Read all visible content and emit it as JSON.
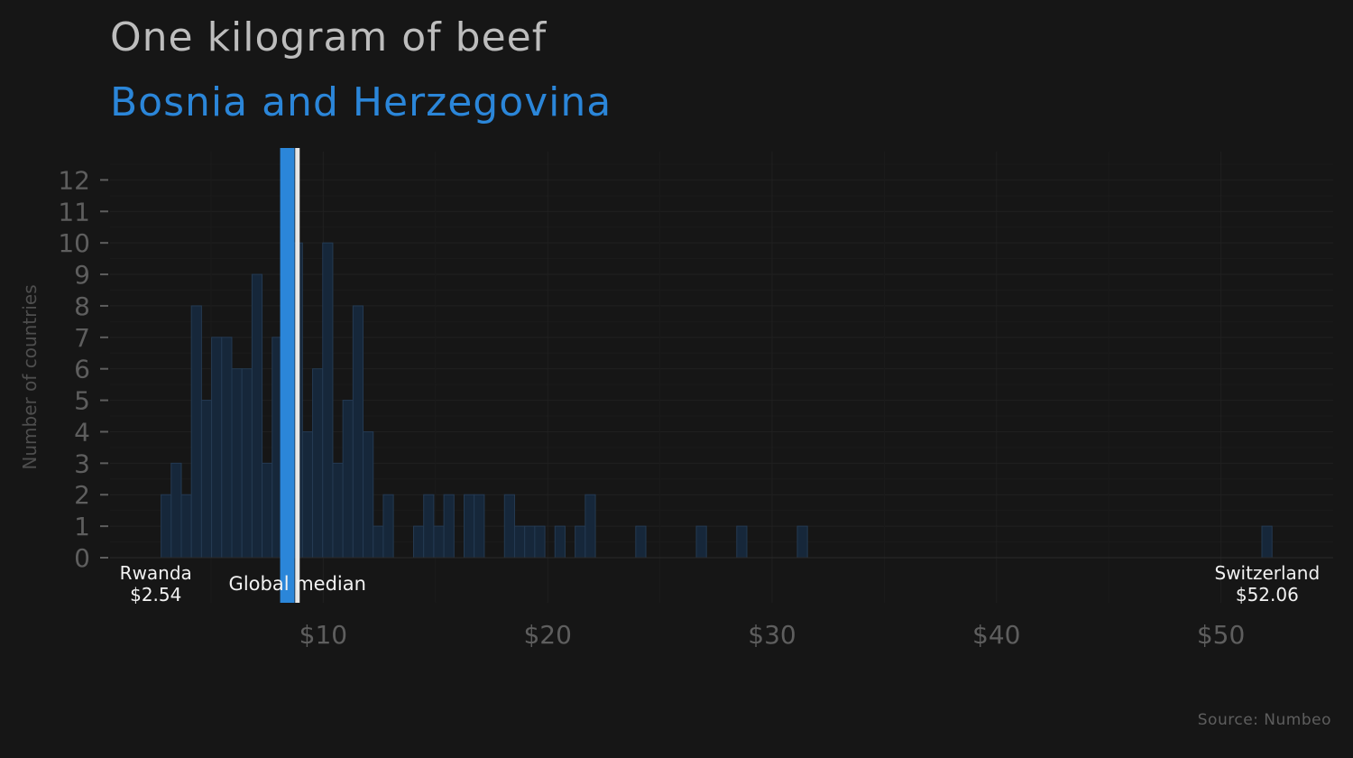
{
  "title": "One kilogram of beef",
  "subtitle": "Bosnia and Herzegovina",
  "source": "Source: Numbeo",
  "colors": {
    "background": "#161616",
    "bars": "#16273a",
    "bar_edge": "#243a52",
    "highlight": "#2b86d9",
    "median": "#e6e6e6",
    "axis_text": "#5e5e5e",
    "grid": "#202020"
  },
  "chart_data": {
    "type": "bar",
    "xlabel": "",
    "ylabel": "Number of countries",
    "xlim": [
      0.5,
      55
    ],
    "ylim": [
      0,
      12.9
    ],
    "bin_width": 0.45,
    "x_ticks": [
      10,
      20,
      30,
      40,
      50
    ],
    "x_tick_labels": [
      "$10",
      "$20",
      "$30",
      "$40",
      "$50"
    ],
    "y_ticks": [
      0,
      1,
      2,
      3,
      4,
      5,
      6,
      7,
      8,
      9,
      10,
      11,
      12
    ],
    "bins": [
      {
        "x": 3.0,
        "count": 2
      },
      {
        "x": 3.45,
        "count": 3
      },
      {
        "x": 3.9,
        "count": 2
      },
      {
        "x": 4.35,
        "count": 8
      },
      {
        "x": 4.8,
        "count": 5
      },
      {
        "x": 5.25,
        "count": 7
      },
      {
        "x": 5.7,
        "count": 7
      },
      {
        "x": 6.15,
        "count": 6
      },
      {
        "x": 6.6,
        "count": 6
      },
      {
        "x": 7.05,
        "count": 9
      },
      {
        "x": 7.5,
        "count": 3
      },
      {
        "x": 7.95,
        "count": 7
      },
      {
        "x": 8.85,
        "count": 10
      },
      {
        "x": 9.3,
        "count": 4
      },
      {
        "x": 9.75,
        "count": 6
      },
      {
        "x": 10.2,
        "count": 10
      },
      {
        "x": 10.65,
        "count": 3
      },
      {
        "x": 11.1,
        "count": 5
      },
      {
        "x": 11.55,
        "count": 8
      },
      {
        "x": 12.0,
        "count": 4
      },
      {
        "x": 12.45,
        "count": 1
      },
      {
        "x": 12.9,
        "count": 2
      },
      {
        "x": 14.25,
        "count": 1
      },
      {
        "x": 14.7,
        "count": 2
      },
      {
        "x": 15.15,
        "count": 1
      },
      {
        "x": 15.6,
        "count": 2
      },
      {
        "x": 16.5,
        "count": 2
      },
      {
        "x": 16.95,
        "count": 2
      },
      {
        "x": 18.3,
        "count": 2
      },
      {
        "x": 18.75,
        "count": 1
      },
      {
        "x": 19.2,
        "count": 1
      },
      {
        "x": 19.65,
        "count": 1
      },
      {
        "x": 20.55,
        "count": 1
      },
      {
        "x": 21.45,
        "count": 1
      },
      {
        "x": 21.9,
        "count": 2
      },
      {
        "x": 24.15,
        "count": 1
      },
      {
        "x": 26.85,
        "count": 1
      },
      {
        "x": 28.65,
        "count": 1
      },
      {
        "x": 31.35,
        "count": 1
      },
      {
        "x": 52.05,
        "count": 1
      }
    ],
    "highlight": {
      "x": 8.4,
      "label": "Bosnia and Herzegovina"
    },
    "median": {
      "x": 8.85,
      "label": "Global  median"
    },
    "annotations": [
      {
        "x": 2.54,
        "lines": [
          "Rwanda",
          "$2.54"
        ]
      },
      {
        "x": 52.06,
        "lines": [
          "Switzerland",
          "$52.06"
        ]
      }
    ]
  }
}
